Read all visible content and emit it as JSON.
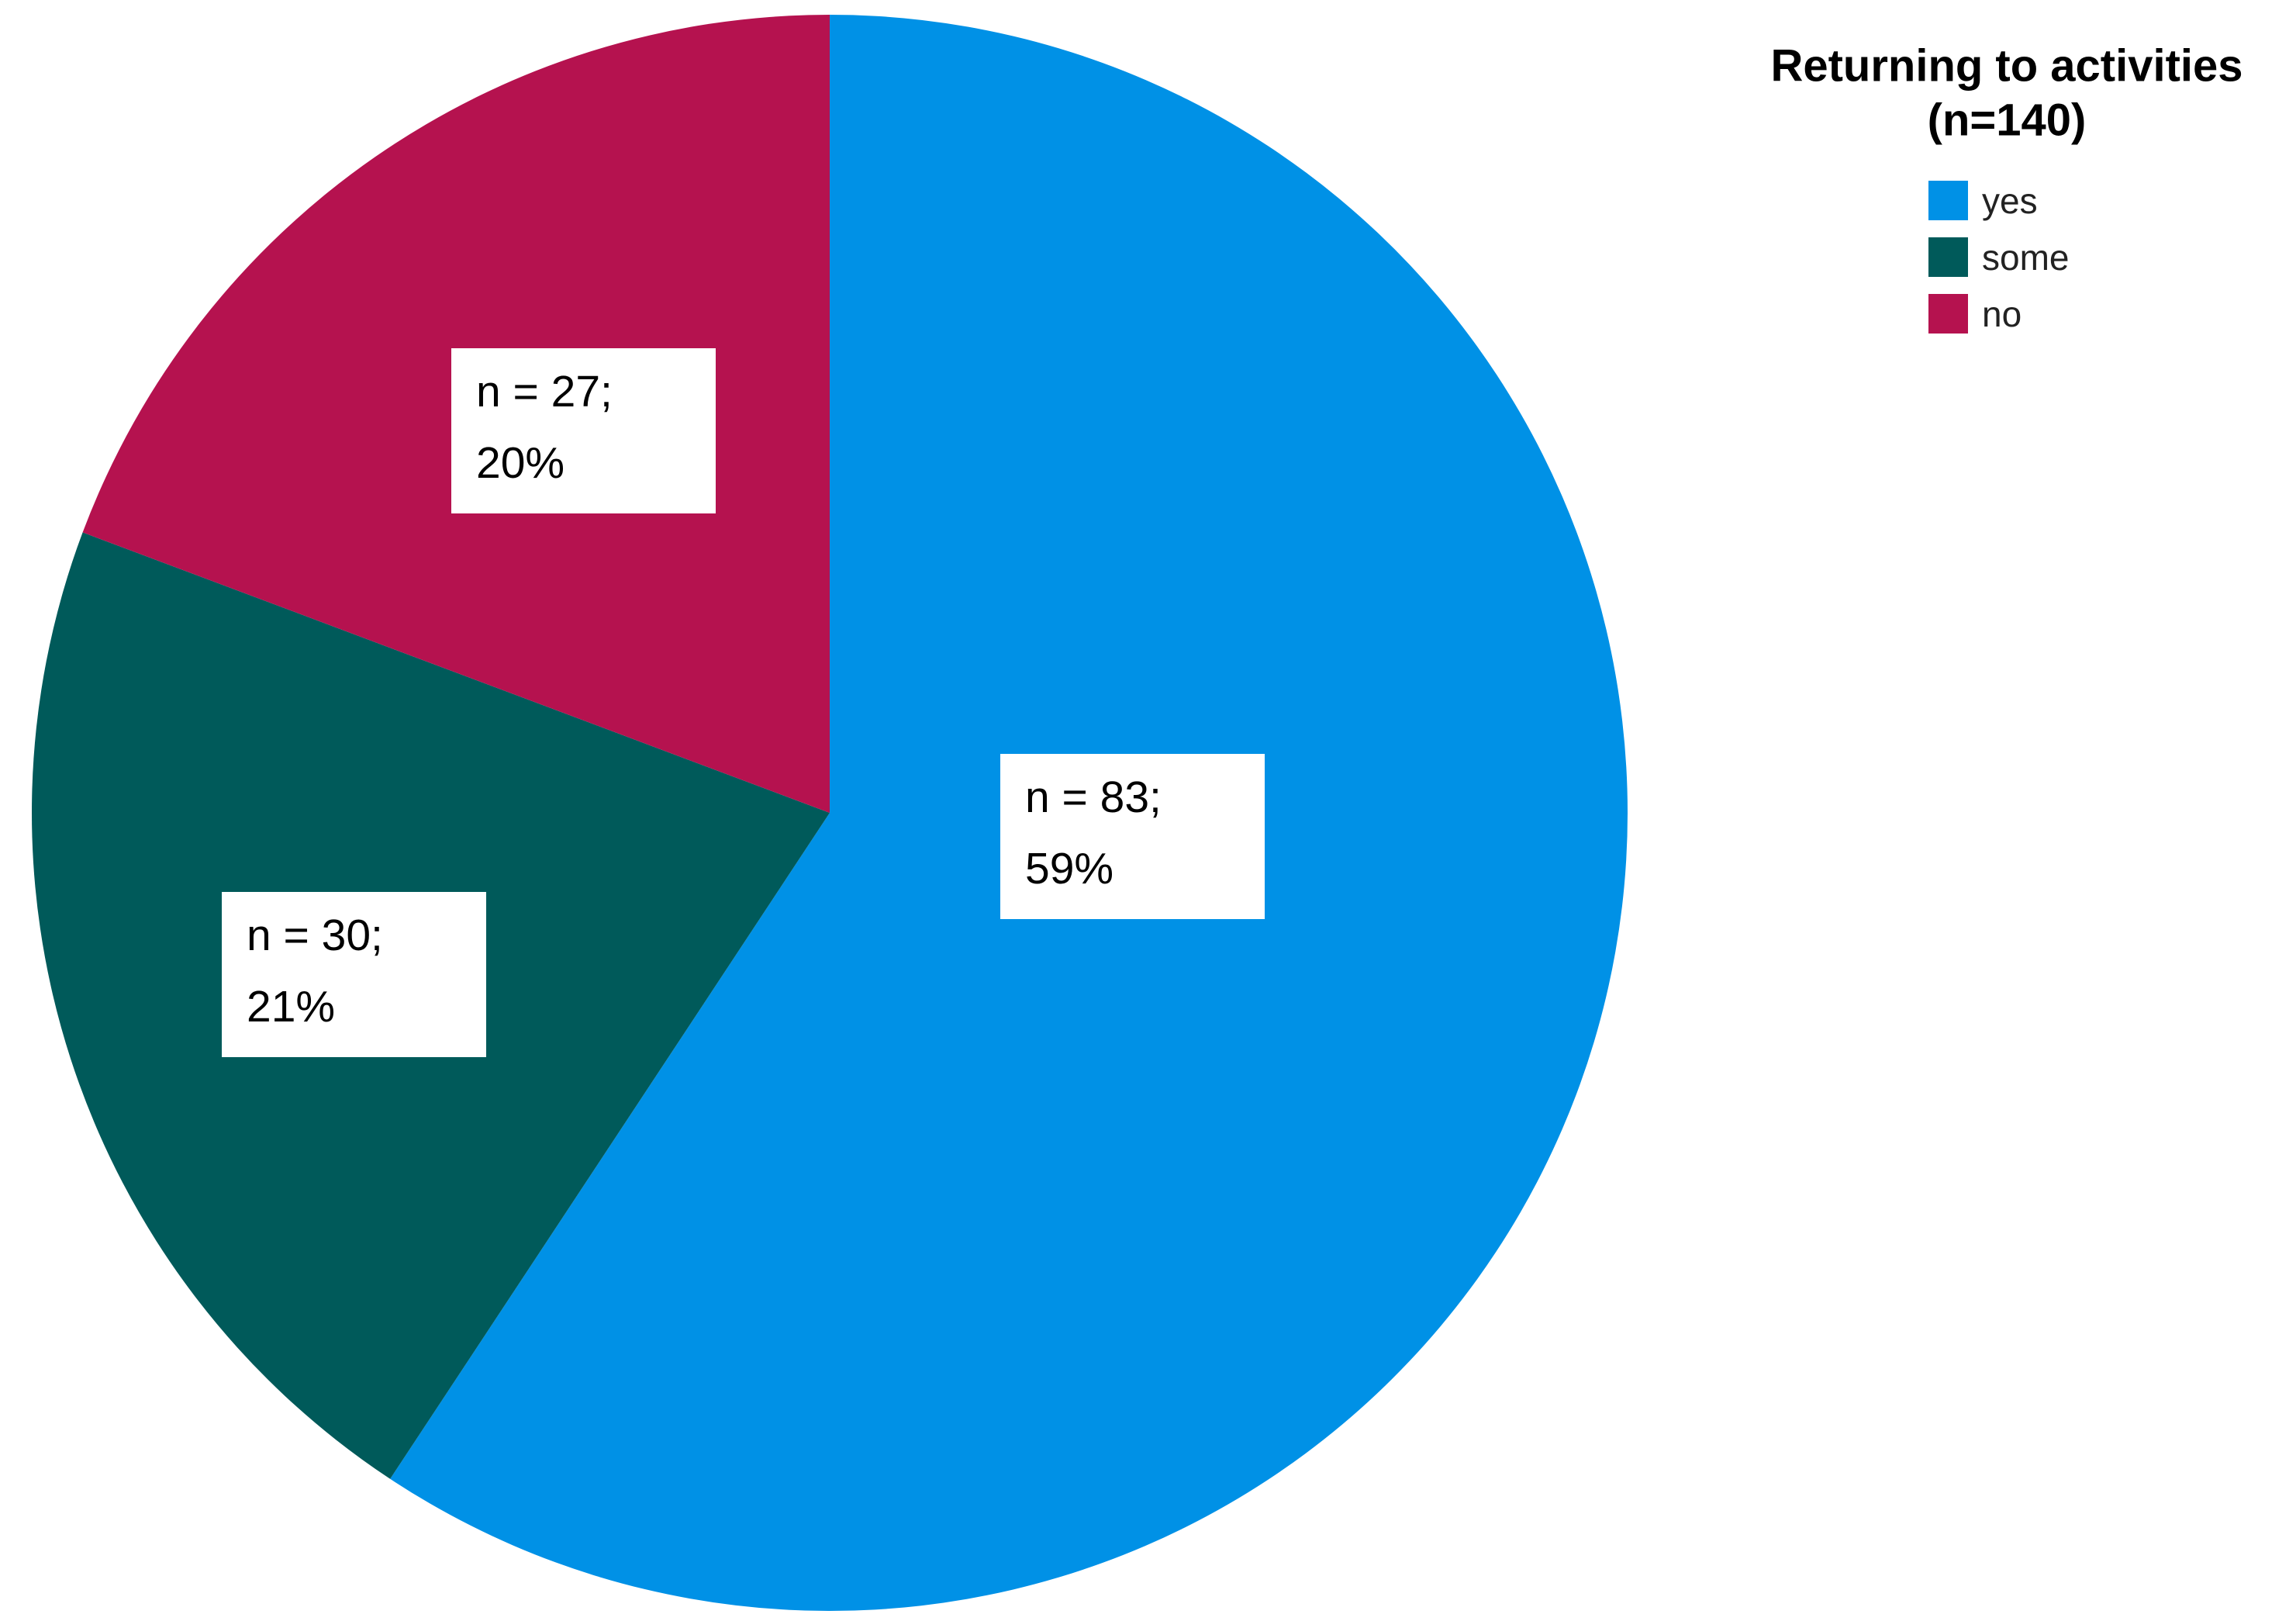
{
  "chart_data": {
    "type": "pie",
    "legend_title": [
      "Returning to activities",
      "(n=140)"
    ],
    "categories": [
      "yes",
      "some",
      "no"
    ],
    "values": [
      83,
      30,
      27
    ],
    "value_labels": [
      [
        "n =  83;",
        "59%"
      ],
      [
        "n =  30;",
        "21%"
      ],
      [
        "n = 27;",
        "20%"
      ]
    ],
    "colors": [
      "#0091e6",
      "#005a5a",
      "#b5124f"
    ],
    "legend": "top-right"
  }
}
